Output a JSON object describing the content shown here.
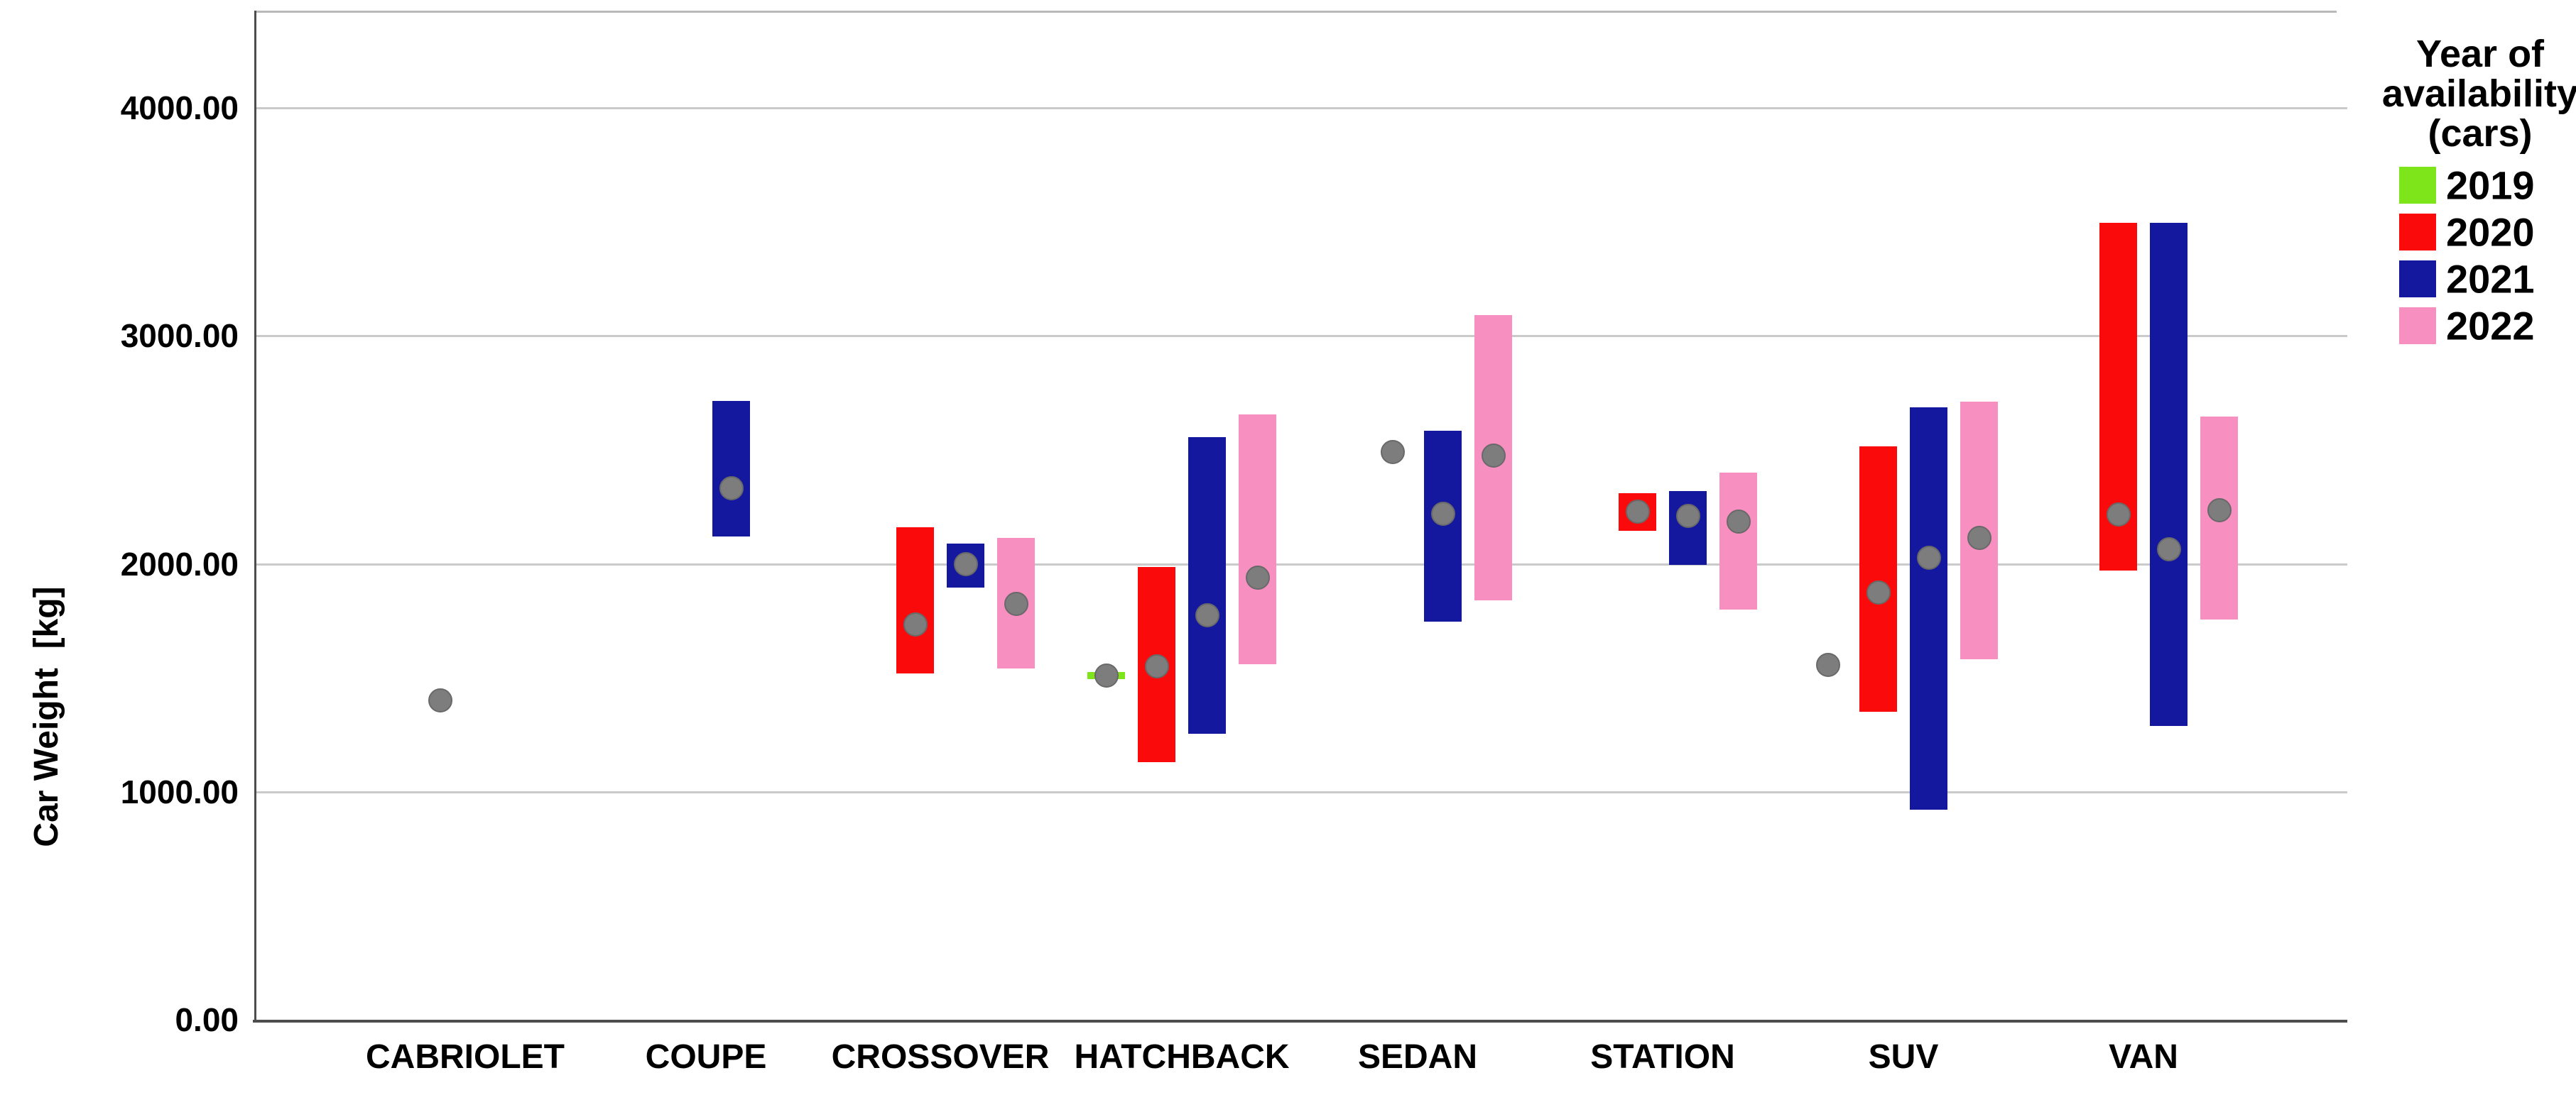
{
  "chart_data": {
    "type": "bar",
    "subtype": "clustered-range-bar-with-mean-markers",
    "title": "",
    "ylabel": "Car Weight  [kg]",
    "xlabel": "",
    "grid": true,
    "legend_position": "right",
    "legend_title": "Year of availability (cars)",
    "legend_title_lines": [
      "Year of",
      "availability",
      "(cars)"
    ],
    "mean_marker_color": "#7D7D7D",
    "gridline_color": "#CACACA",
    "axis_color": "#4D4D4D",
    "ylim": [
      0,
      4430
    ],
    "yticks": [
      {
        "value": 0,
        "label": "0.00"
      },
      {
        "value": 1000,
        "label": "1000.00"
      },
      {
        "value": 2000,
        "label": "2000.00"
      },
      {
        "value": 3000,
        "label": "3000.00"
      },
      {
        "value": 4000,
        "label": "4000.00"
      }
    ],
    "categories": [
      "CABRIOLET",
      "COUPE",
      "CROSSOVER",
      "HATCHBACK",
      "SEDAN",
      "STATION",
      "SUV",
      "VAN"
    ],
    "years": [
      {
        "name": "2019",
        "color": "#7DE51A"
      },
      {
        "name": "2020",
        "color": "#FA0A0A"
      },
      {
        "name": "2021",
        "color": "#13189E"
      },
      {
        "name": "2022",
        "color": "#F78FC0"
      }
    ],
    "series": [
      {
        "name": "2019",
        "values": [
          null,
          null,
          null,
          {
            "min": 1495,
            "max": 1525,
            "mean": 1510
          },
          null,
          null,
          {
            "min": 1555,
            "max": 1555,
            "mean": 1555
          },
          null
        ]
      },
      {
        "name": "2020",
        "values": [
          {
            "min": 1400,
            "max": 1400,
            "mean": 1400
          },
          null,
          {
            "min": 1520,
            "max": 2160,
            "mean": 1735
          },
          {
            "min": 1130,
            "max": 1985,
            "mean": 1550
          },
          {
            "min": 2490,
            "max": 2490,
            "mean": 2490
          },
          {
            "min": 2145,
            "max": 2310,
            "mean": 2230
          },
          {
            "min": 1350,
            "max": 2515,
            "mean": 1875
          },
          {
            "min": 1970,
            "max": 3495,
            "mean": 2215
          }
        ]
      },
      {
        "name": "2021",
        "values": [
          null,
          {
            "min": 2120,
            "max": 2715,
            "mean": 2330
          },
          {
            "min": 1895,
            "max": 2090,
            "mean": 2000
          },
          {
            "min": 1255,
            "max": 2555,
            "mean": 1775
          },
          {
            "min": 1745,
            "max": 2585,
            "mean": 2220
          },
          {
            "min": 1995,
            "max": 2320,
            "mean": 2210
          },
          {
            "min": 920,
            "max": 2685,
            "mean": 2025
          },
          {
            "min": 1290,
            "max": 3495,
            "mean": 2065
          }
        ]
      },
      {
        "name": "2022",
        "values": [
          null,
          null,
          {
            "min": 1540,
            "max": 2115,
            "mean": 1825
          },
          {
            "min": 1560,
            "max": 2655,
            "mean": 1940
          },
          {
            "min": 1840,
            "max": 3090,
            "mean": 2475
          },
          {
            "min": 1800,
            "max": 2400,
            "mean": 2185
          },
          {
            "min": 1580,
            "max": 2710,
            "mean": 2115
          },
          {
            "min": 1755,
            "max": 2645,
            "mean": 2235
          }
        ]
      }
    ]
  }
}
